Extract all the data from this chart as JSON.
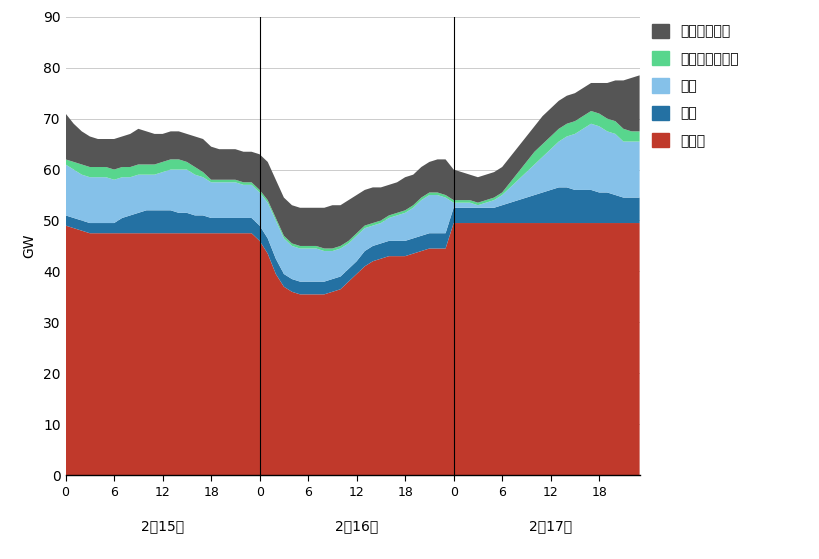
{
  "ylabel": "GW",
  "ylim": [
    0,
    90
  ],
  "yticks": [
    0,
    10,
    20,
    30,
    40,
    50,
    60,
    70,
    80,
    90
  ],
  "colors": {
    "nuclear": "#C0392B",
    "hydro": "#2471A3",
    "wind": "#85C1E9",
    "other_renewables": "#58D68D",
    "fossil": "#555555"
  },
  "legend_labels": [
    "化石燃料・他",
    "その他自然エネ",
    "風力",
    "水力",
    "原子力"
  ],
  "date_labels": [
    "2月15日",
    "2月16日",
    "2月17日"
  ],
  "nuclear": [
    49.0,
    48.5,
    48.0,
    47.5,
    47.5,
    47.5,
    47.5,
    47.5,
    47.5,
    47.5,
    47.5,
    47.5,
    47.5,
    47.5,
    47.5,
    47.5,
    47.5,
    47.5,
    47.5,
    47.5,
    47.5,
    47.5,
    47.5,
    47.5,
    46.0,
    43.5,
    39.5,
    37.0,
    36.0,
    35.5,
    35.5,
    35.5,
    35.5,
    36.0,
    36.5,
    38.0,
    39.5,
    41.0,
    42.0,
    42.5,
    43.0,
    43.0,
    43.0,
    43.5,
    44.0,
    44.5,
    44.5,
    44.5,
    49.5,
    49.5,
    49.5,
    49.5,
    49.5,
    49.5,
    49.5,
    49.5,
    49.5,
    49.5,
    49.5,
    49.5,
    49.5,
    49.5,
    49.5,
    49.5,
    49.5,
    49.5,
    49.5,
    49.5,
    49.5,
    49.5,
    49.5,
    49.5
  ],
  "hydro": [
    2.0,
    2.0,
    2.0,
    2.0,
    2.0,
    2.0,
    2.0,
    3.0,
    3.5,
    4.0,
    4.5,
    4.5,
    4.5,
    4.5,
    4.0,
    4.0,
    3.5,
    3.5,
    3.0,
    3.0,
    3.0,
    3.0,
    3.0,
    3.0,
    3.0,
    3.0,
    3.0,
    2.5,
    2.5,
    2.5,
    2.5,
    2.5,
    2.5,
    2.5,
    2.5,
    2.5,
    2.5,
    3.0,
    3.0,
    3.0,
    3.0,
    3.0,
    3.0,
    3.0,
    3.0,
    3.0,
    3.0,
    3.0,
    3.0,
    3.0,
    3.0,
    3.0,
    3.0,
    3.0,
    3.5,
    4.0,
    4.5,
    5.0,
    5.5,
    6.0,
    6.5,
    7.0,
    7.0,
    6.5,
    6.5,
    6.5,
    6.0,
    6.0,
    5.5,
    5.0,
    5.0,
    5.0
  ],
  "wind": [
    10.0,
    9.5,
    9.0,
    9.0,
    9.0,
    9.0,
    8.5,
    8.0,
    7.5,
    7.5,
    7.0,
    7.0,
    7.5,
    8.0,
    8.5,
    8.5,
    8.0,
    7.5,
    7.0,
    7.0,
    7.0,
    7.0,
    6.5,
    6.5,
    6.5,
    7.0,
    7.5,
    7.0,
    6.5,
    6.5,
    6.5,
    6.5,
    6.0,
    5.5,
    5.5,
    5.0,
    5.0,
    4.5,
    4.0,
    4.0,
    4.5,
    5.0,
    5.5,
    6.0,
    7.0,
    7.5,
    7.5,
    7.0,
    1.0,
    1.0,
    1.0,
    0.5,
    1.0,
    1.5,
    2.0,
    3.0,
    4.0,
    5.0,
    6.0,
    7.0,
    8.0,
    9.0,
    10.0,
    11.0,
    12.0,
    13.0,
    13.0,
    12.0,
    12.0,
    11.0,
    11.0,
    11.0
  ],
  "other_renewables": [
    1.0,
    1.5,
    2.0,
    2.0,
    2.0,
    2.0,
    2.0,
    2.0,
    2.0,
    2.0,
    2.0,
    2.0,
    2.0,
    2.0,
    2.0,
    1.5,
    1.5,
    1.0,
    0.5,
    0.5,
    0.5,
    0.5,
    0.5,
    0.5,
    0.5,
    0.5,
    0.5,
    0.5,
    0.5,
    0.5,
    0.5,
    0.5,
    0.5,
    0.5,
    0.5,
    0.5,
    0.5,
    0.5,
    0.5,
    0.5,
    0.5,
    0.5,
    0.5,
    0.5,
    0.5,
    0.5,
    0.5,
    0.5,
    0.5,
    0.5,
    0.5,
    0.5,
    0.5,
    0.5,
    0.5,
    1.0,
    1.5,
    2.0,
    2.5,
    2.5,
    2.5,
    2.5,
    2.5,
    2.5,
    2.5,
    2.5,
    2.5,
    2.5,
    2.5,
    2.5,
    2.0,
    2.0
  ],
  "fossil": [
    9.0,
    7.5,
    6.5,
    6.0,
    5.5,
    5.5,
    6.0,
    6.0,
    6.5,
    7.0,
    6.5,
    6.0,
    5.5,
    5.5,
    5.5,
    5.5,
    6.0,
    6.5,
    6.5,
    6.0,
    6.0,
    6.0,
    6.0,
    6.0,
    7.0,
    7.5,
    7.5,
    7.5,
    7.5,
    7.5,
    7.5,
    7.5,
    8.0,
    8.5,
    8.0,
    8.0,
    7.5,
    7.0,
    7.0,
    6.5,
    6.0,
    6.0,
    6.5,
    6.0,
    6.0,
    6.0,
    6.5,
    7.0,
    6.0,
    5.5,
    5.0,
    5.0,
    5.0,
    5.0,
    5.0,
    5.0,
    5.0,
    5.0,
    5.0,
    5.5,
    5.5,
    5.5,
    5.5,
    5.5,
    5.5,
    5.5,
    6.0,
    7.0,
    8.0,
    9.5,
    10.5,
    11.0
  ]
}
